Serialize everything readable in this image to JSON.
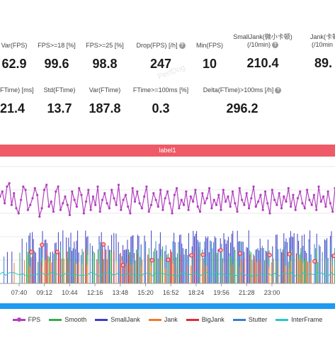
{
  "stats_row1": [
    {
      "label": "Var(FPS)",
      "value": "62.9",
      "help": false
    },
    {
      "label": "FPS>=18 [%]",
      "value": "99.6",
      "help": false
    },
    {
      "label": "FPS>=25 [%]",
      "value": "98.8",
      "help": false
    },
    {
      "label": "Drop(FPS) [/h]",
      "value": "247",
      "help": true
    },
    {
      "label": "Min(FPS)",
      "value": "10",
      "help": false
    },
    {
      "label": "SmallJank(微小卡顿)",
      "label2": "(/10min)",
      "value": "210.4",
      "help": true
    },
    {
      "label": "Jank(卡顿",
      "label2": "(/10min",
      "value": "89.",
      "help": false
    }
  ],
  "stats_row2": [
    {
      "label": "FTime) [ms]",
      "value": "21.4"
    },
    {
      "label": "Std(FTime)",
      "value": "13.7"
    },
    {
      "label": "Var(FTime)",
      "value": "187.8"
    },
    {
      "label": "FTime>=100ms [%]",
      "value": "0.3"
    },
    {
      "label": "Delta(FTime)>100ms [/h]",
      "value": "296.2",
      "help": true
    }
  ],
  "watermark": "PerfDog",
  "label_bar": "label1",
  "chart_data": {
    "type": "line",
    "x_ticks": [
      "07:40",
      "09:12",
      "10:44",
      "12:16",
      "13:48",
      "15:20",
      "16:52",
      "18:24",
      "19:56",
      "21:28",
      "23:00"
    ],
    "series": [
      {
        "name": "FPS",
        "color": "#b23fbf"
      },
      {
        "name": "Smooth",
        "color": "#3aaa4a"
      },
      {
        "name": "SmallJank",
        "color": "#3c3fc4"
      },
      {
        "name": "Jank",
        "color": "#f07b2a"
      },
      {
        "name": "BigJank",
        "color": "#e02b38"
      },
      {
        "name": "Stutter",
        "color": "#3a7ec8"
      },
      {
        "name": "InterFrame",
        "color": "#28c8c8"
      }
    ],
    "fps_points": [
      52,
      55,
      48,
      58,
      60,
      47,
      54,
      45,
      42,
      50,
      58,
      56,
      44,
      47,
      51,
      57,
      53,
      40,
      45,
      56,
      59,
      46,
      49,
      43,
      55,
      58,
      44,
      48,
      52,
      47,
      41,
      55,
      50,
      46,
      57,
      53,
      42,
      49,
      56,
      44,
      52,
      47,
      58,
      43,
      50,
      54,
      48,
      45,
      56,
      51,
      47,
      59,
      44,
      50,
      53,
      46,
      42,
      57,
      49,
      55,
      48,
      45,
      52,
      58,
      43,
      47,
      54,
      50,
      46,
      56,
      44,
      51,
      55,
      48,
      42,
      53,
      57,
      45,
      50,
      47,
      55,
      44,
      52,
      49,
      56,
      46,
      43,
      54,
      48,
      51,
      57,
      45,
      50,
      47,
      53,
      44,
      56,
      49,
      52,
      46,
      55,
      48,
      43,
      57,
      50,
      47,
      54,
      45,
      51,
      58,
      46,
      49,
      53,
      44,
      55,
      48,
      42,
      56,
      50,
      47,
      54,
      45,
      52,
      49,
      57,
      46,
      53,
      44,
      51,
      55,
      48,
      45,
      56,
      50,
      47,
      53,
      44,
      58,
      49,
      52,
      46,
      55,
      48,
      43,
      57
    ]
  },
  "legend": [
    "FPS",
    "Smooth",
    "SmallJank",
    "Jank",
    "BigJank",
    "Stutter",
    "InterFrame"
  ]
}
